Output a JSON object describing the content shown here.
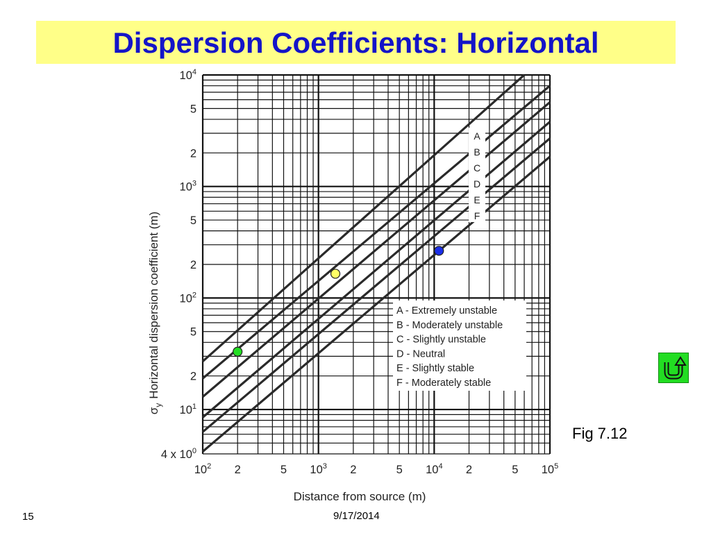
{
  "slide": {
    "title": "Dispersion Coefficients: Horizontal",
    "figure_label": "Fig 7.12",
    "slide_number": "15",
    "date": "9/17/2014",
    "return_button_icon": "return-arrow-icon",
    "colors": {
      "title": "#1414c8",
      "title_bg": "#ffff88",
      "return_button": "#22dd22"
    }
  },
  "chart_data": {
    "type": "line",
    "xlabel": "Distance from source (m)",
    "ylabel_symbol": "σ",
    "ylabel_subscript": "y",
    "ylabel_text": "Horizontal dispersion coefficient (m)",
    "x_scale": "log",
    "y_scale": "log",
    "xlim": [
      100,
      100000
    ],
    "ylim": [
      4,
      10000
    ],
    "grid": true,
    "x_ticks": [
      {
        "value": 100,
        "base": "10",
        "exp": "2"
      },
      {
        "value": 200,
        "base": "2",
        "exp": ""
      },
      {
        "value": 500,
        "base": "5",
        "exp": ""
      },
      {
        "value": 1000,
        "base": "10",
        "exp": "3"
      },
      {
        "value": 2000,
        "base": "2",
        "exp": ""
      },
      {
        "value": 5000,
        "base": "5",
        "exp": ""
      },
      {
        "value": 10000,
        "base": "10",
        "exp": "4"
      },
      {
        "value": 20000,
        "base": "2",
        "exp": ""
      },
      {
        "value": 50000,
        "base": "5",
        "exp": ""
      },
      {
        "value": 100000,
        "base": "10",
        "exp": "5"
      }
    ],
    "y_ticks": [
      {
        "value": 4,
        "base": "4 x 10",
        "exp": "0"
      },
      {
        "value": 10,
        "base": "10",
        "exp": "1"
      },
      {
        "value": 20,
        "base": "2",
        "exp": ""
      },
      {
        "value": 50,
        "base": "5",
        "exp": ""
      },
      {
        "value": 100,
        "base": "10",
        "exp": "2"
      },
      {
        "value": 200,
        "base": "2",
        "exp": ""
      },
      {
        "value": 500,
        "base": "5",
        "exp": ""
      },
      {
        "value": 1000,
        "base": "10",
        "exp": "3"
      },
      {
        "value": 2000,
        "base": "2",
        "exp": ""
      },
      {
        "value": 5000,
        "base": "5",
        "exp": ""
      },
      {
        "value": 10000,
        "base": "10",
        "exp": "4"
      }
    ],
    "series": [
      {
        "name": "A",
        "x": [
          100,
          60000
        ],
        "y": [
          27,
          10000
        ]
      },
      {
        "name": "B",
        "x": [
          100,
          100000
        ],
        "y": [
          19,
          8000
        ]
      },
      {
        "name": "C",
        "x": [
          100,
          100000
        ],
        "y": [
          13,
          5700
        ]
      },
      {
        "name": "D",
        "x": [
          100,
          100000
        ],
        "y": [
          8.5,
          3800
        ]
      },
      {
        "name": "E",
        "x": [
          100,
          100000
        ],
        "y": [
          6.3,
          2700
        ]
      },
      {
        "name": "F",
        "x": [
          100,
          100000
        ],
        "y": [
          4.2,
          1850
        ]
      }
    ],
    "legend_entries": [
      "A - Extremely  unstable",
      "B - Moderately unstable",
      "C - Slightly unstable",
      "D - Neutral",
      "E - Slightly stable",
      "F - Moderately stable"
    ],
    "legend_placement": "lower-right",
    "markers": [
      {
        "x": 200,
        "y": 33,
        "color": "#22dd22"
      },
      {
        "x": 1400,
        "y": 165,
        "color": "#ffff66"
      },
      {
        "x": 11000,
        "y": 265,
        "color": "#1a2ee8"
      }
    ]
  }
}
